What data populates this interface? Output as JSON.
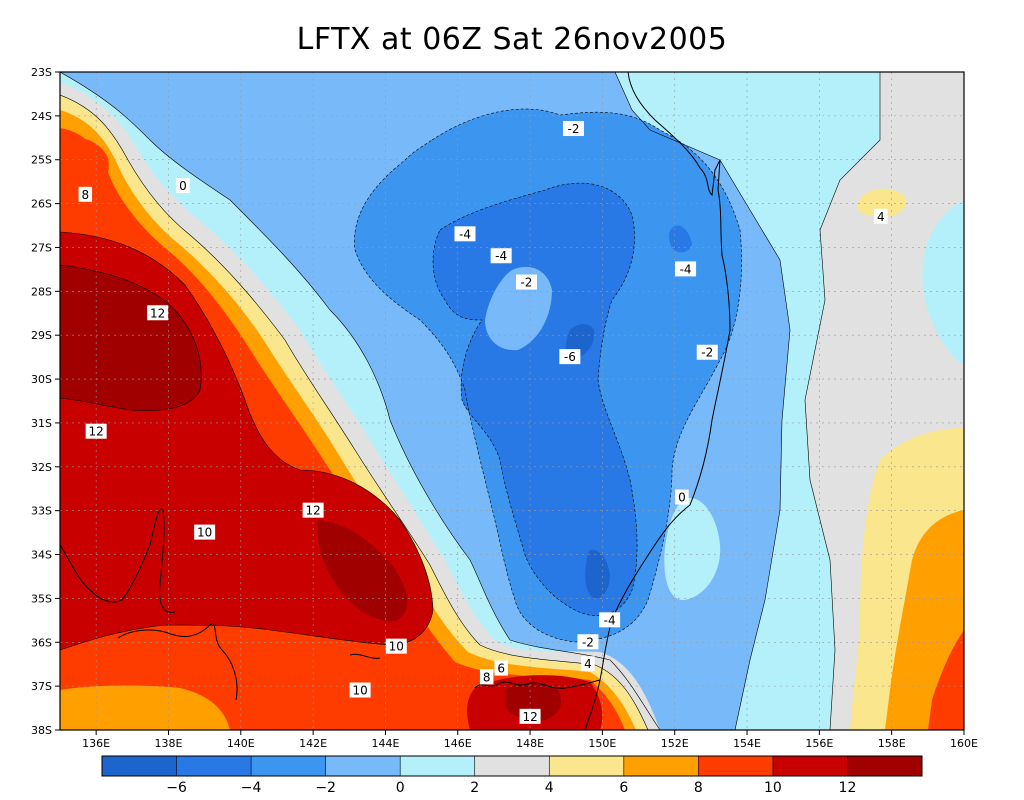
{
  "title": "LFTX at 06Z Sat 26nov2005",
  "map": {
    "lat_ticks": [
      "23S",
      "24S",
      "25S",
      "26S",
      "27S",
      "28S",
      "29S",
      "30S",
      "31S",
      "32S",
      "33S",
      "34S",
      "35S",
      "36S",
      "37S",
      "38S"
    ],
    "lon_ticks": [
      "136E",
      "138E",
      "140E",
      "142E",
      "144E",
      "146E",
      "148E",
      "150E",
      "152E",
      "154E",
      "156E",
      "158E",
      "160E"
    ],
    "lon_range": [
      135,
      160
    ],
    "lat_range": [
      -38,
      -23
    ],
    "grid": true,
    "contour_labels": [
      {
        "text": "-2",
        "lon": 149.2,
        "lat": -24.3
      },
      {
        "text": "0",
        "lon": 138.4,
        "lat": -25.6
      },
      {
        "text": "8",
        "lon": 135.7,
        "lat": -25.8
      },
      {
        "text": "-4",
        "lon": 146.2,
        "lat": -26.7
      },
      {
        "text": "-4",
        "lon": 147.2,
        "lat": -27.2
      },
      {
        "text": "-4",
        "lon": 152.3,
        "lat": -27.5
      },
      {
        "text": "-2",
        "lon": 147.9,
        "lat": -27.8
      },
      {
        "text": "12",
        "lon": 137.7,
        "lat": -28.5
      },
      {
        "text": "-6",
        "lon": 149.1,
        "lat": -29.5
      },
      {
        "text": "-2",
        "lon": 152.9,
        "lat": -29.4
      },
      {
        "text": "12",
        "lon": 136.0,
        "lat": -31.2
      },
      {
        "text": "0",
        "lon": 152.2,
        "lat": -32.7
      },
      {
        "text": "12",
        "lon": 142.0,
        "lat": -33.0
      },
      {
        "text": "10",
        "lon": 139.0,
        "lat": -33.5
      },
      {
        "text": "-4",
        "lon": 150.2,
        "lat": -35.5
      },
      {
        "text": "-2",
        "lon": 149.6,
        "lat": -36.0
      },
      {
        "text": "10",
        "lon": 144.3,
        "lat": -36.1
      },
      {
        "text": "4",
        "lon": 149.6,
        "lat": -36.5
      },
      {
        "text": "6",
        "lon": 147.2,
        "lat": -36.6
      },
      {
        "text": "8",
        "lon": 146.8,
        "lat": -36.8
      },
      {
        "text": "10",
        "lon": 143.3,
        "lat": -37.1
      },
      {
        "text": "12",
        "lon": 148.0,
        "lat": -37.7
      },
      {
        "text": "4",
        "lon": 157.7,
        "lat": -26.3
      }
    ]
  },
  "colorbar": {
    "labels": [
      "-6",
      "-4",
      "-2",
      "0",
      "2",
      "4",
      "6",
      "8",
      "10",
      "12"
    ],
    "colors": [
      "#1e64cd",
      "#2878e6",
      "#3c96f0",
      "#78b9fa",
      "#b4f0fa",
      "#e1e1e1",
      "#fae68c",
      "#ffa000",
      "#ff3c00",
      "#c80000",
      "#a00000"
    ]
  }
}
